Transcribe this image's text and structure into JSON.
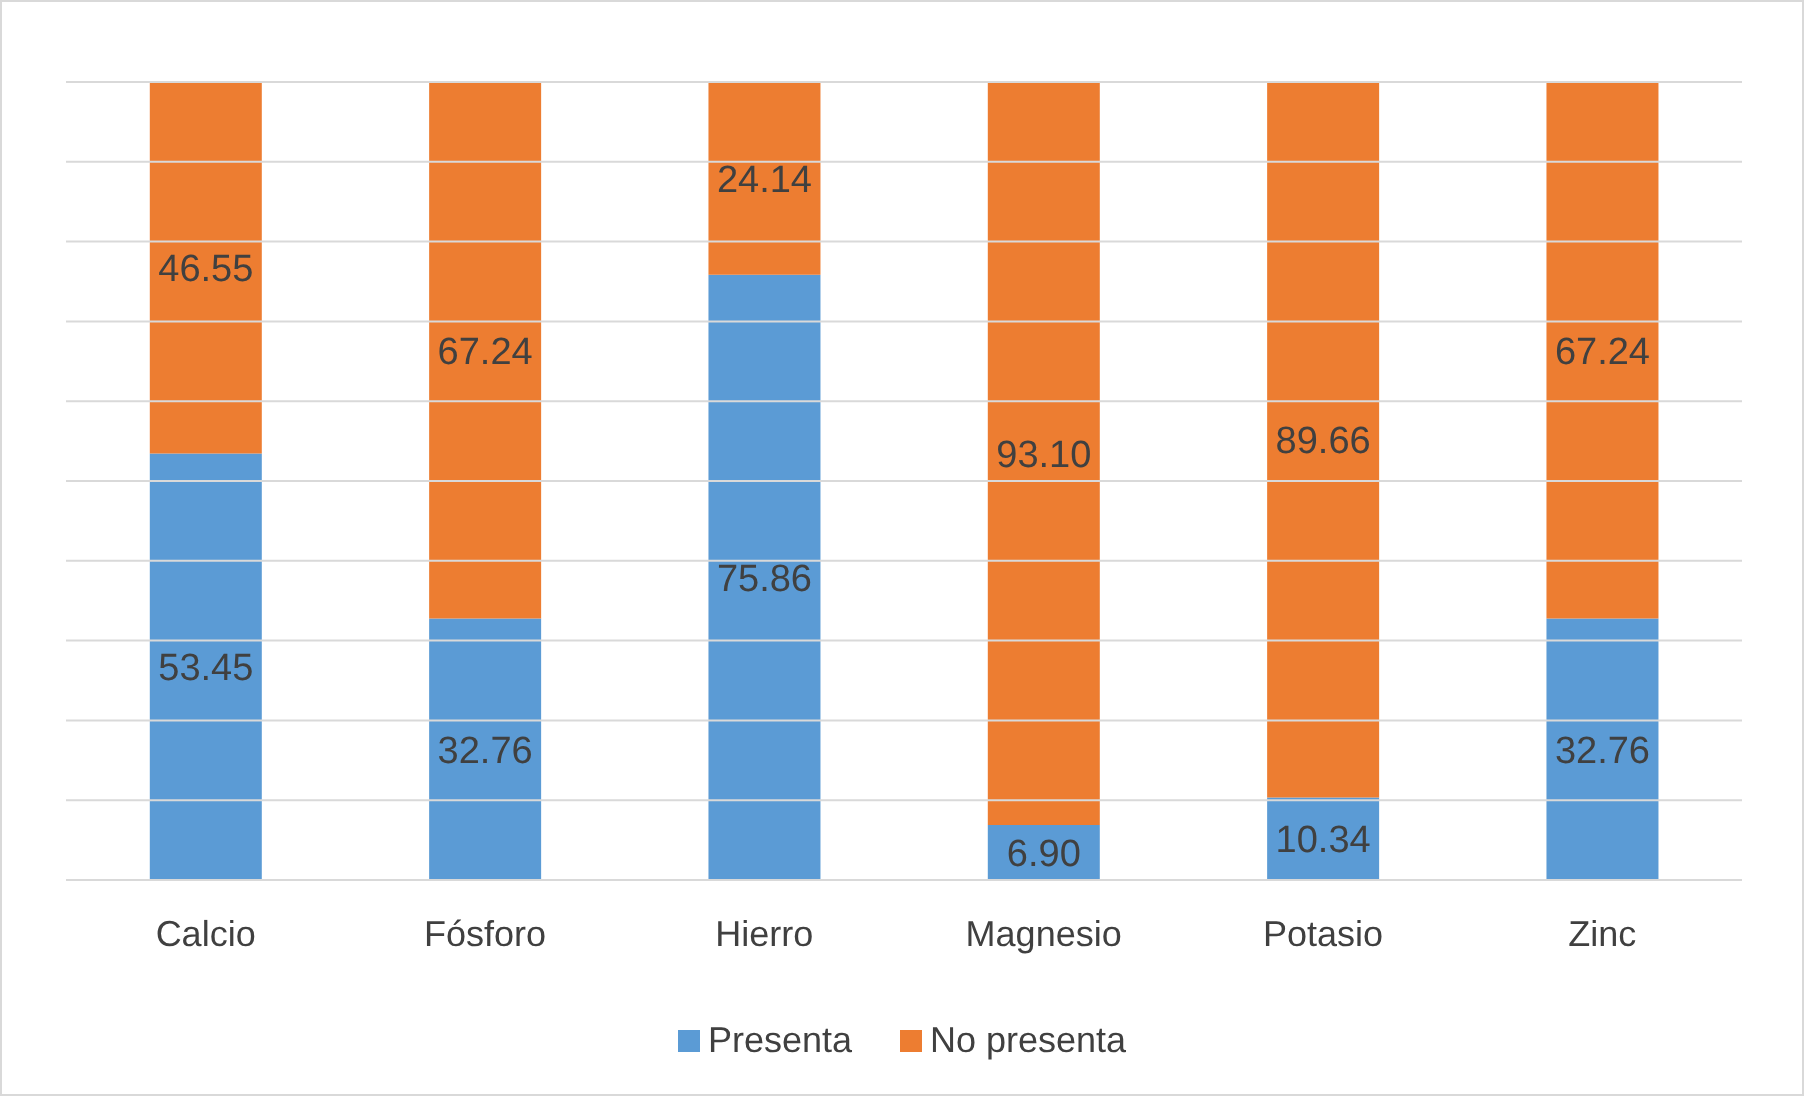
{
  "chart_data": {
    "type": "bar",
    "stacked": true,
    "categories": [
      "Calcio",
      "Fósforo",
      "Hierro",
      "Magnesio",
      "Potasio",
      "Zinc"
    ],
    "series": [
      {
        "name": "Presenta",
        "color": "#5b9bd5",
        "values": [
          53.45,
          32.76,
          75.86,
          6.9,
          10.34,
          32.76
        ],
        "value_labels": [
          "53.45",
          "32.76",
          "75.86",
          "6.90",
          "10.34",
          "32.76"
        ]
      },
      {
        "name": "No presenta",
        "color": "#ed7d31",
        "values": [
          46.55,
          67.24,
          24.14,
          93.1,
          89.66,
          67.24
        ],
        "value_labels": [
          "46.55",
          "67.24",
          "24.14",
          "93.10",
          "89.66",
          "67.24"
        ]
      }
    ],
    "ylim": [
      0,
      100
    ],
    "yticks": [
      {
        "value": 0,
        "label": null
      },
      {
        "value": 10,
        "label": null
      },
      {
        "value": 20,
        "label": null
      },
      {
        "value": 30,
        "label": null
      },
      {
        "value": 40,
        "label": null
      },
      {
        "value": 50,
        "label": null
      },
      {
        "value": 60,
        "label": null
      },
      {
        "value": 70,
        "label": null
      },
      {
        "value": 80,
        "label": null
      },
      {
        "value": 90,
        "label": null
      },
      {
        "value": 100,
        "label": null
      }
    ],
    "tick_labels": "x",
    "grid": "y",
    "legend": "bottom"
  }
}
